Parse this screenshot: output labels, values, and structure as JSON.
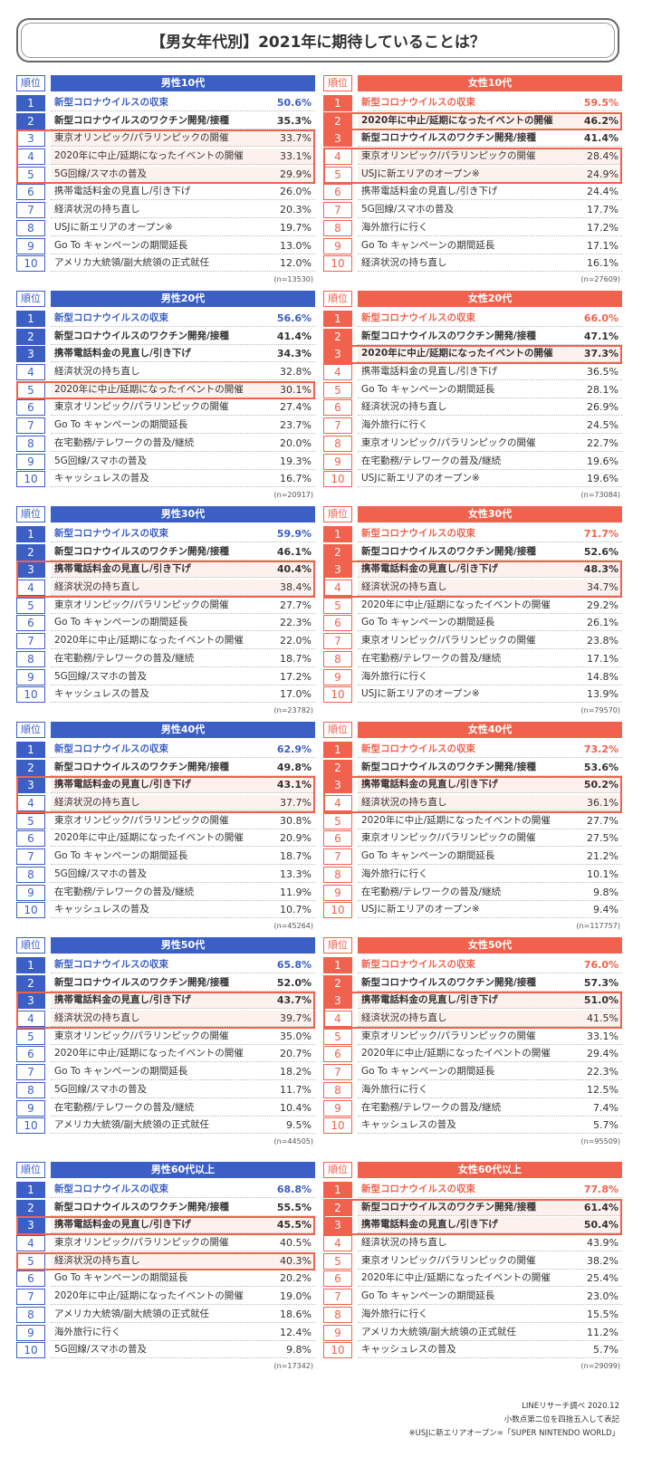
{
  "title": "【男女年代別】2021年に期待していることは？",
  "rank_header": "順位",
  "groups": [
    {
      "name": "男性10代",
      "side": "blue",
      "n": "(n=13530)",
      "bold": 2,
      "boxes": [
        [
          3,
          5
        ]
      ],
      "items": [
        [
          "新型コロナウイルスの収束",
          "50.6%"
        ],
        [
          "新型コロナウイルスのワクチン開発/接種",
          "35.3%"
        ],
        [
          "東京オリンピック/パラリンピックの開催",
          "33.7%"
        ],
        [
          "2020年に中止/延期になったイベントの開催",
          "33.1%"
        ],
        [
          "5G回線/スマホの普及",
          "29.9%"
        ],
        [
          "携帯電話料金の見直し/引き下げ",
          "26.0%"
        ],
        [
          "経済状況の持ち直し",
          "20.3%"
        ],
        [
          "USJに新エリアのオープン※",
          "19.7%"
        ],
        [
          "Go To キャンペーンの期間延長",
          "13.0%"
        ],
        [
          "アメリカ大統領/副大統領の正式就任",
          "12.0%"
        ]
      ]
    },
    {
      "name": "女性10代",
      "side": "red",
      "n": "(n=27609)",
      "bold": 3,
      "boxes": [
        [
          2,
          2
        ],
        [
          4,
          5
        ]
      ],
      "items": [
        [
          "新型コロナウイルスの収束",
          "59.5%"
        ],
        [
          "2020年に中止/延期になったイベントの開催",
          "46.2%"
        ],
        [
          "新型コロナウイルスのワクチン開発/接種",
          "41.4%"
        ],
        [
          "東京オリンピック/パラリンピックの開催",
          "28.4%"
        ],
        [
          "USJに新エリアのオープン※",
          "24.9%"
        ],
        [
          "携帯電話料金の見直し/引き下げ",
          "24.4%"
        ],
        [
          "5G回線/スマホの普及",
          "17.7%"
        ],
        [
          "海外旅行に行く",
          "17.2%"
        ],
        [
          "Go To キャンペーンの期間延長",
          "17.1%"
        ],
        [
          "経済状況の持ち直し",
          "16.1%"
        ]
      ]
    },
    {
      "name": "男性20代",
      "side": "blue",
      "n": "(n=20917)",
      "bold": 3,
      "boxes": [
        [
          5,
          5
        ]
      ],
      "items": [
        [
          "新型コロナウイルスの収束",
          "56.6%"
        ],
        [
          "新型コロナウイルスのワクチン開発/接種",
          "41.4%"
        ],
        [
          "携帯電話料金の見直し/引き下げ",
          "34.3%"
        ],
        [
          "経済状況の持ち直し",
          "32.8%"
        ],
        [
          "2020年に中止/延期になったイベントの開催",
          "30.1%"
        ],
        [
          "東京オリンピック/パラリンピックの開催",
          "27.4%"
        ],
        [
          "Go To キャンペーンの期間延長",
          "23.7%"
        ],
        [
          "在宅勤務/テレワークの普及/継続",
          "20.0%"
        ],
        [
          "5G回線/スマホの普及",
          "19.3%"
        ],
        [
          "キャッシュレスの普及",
          "16.7%"
        ]
      ]
    },
    {
      "name": "女性20代",
      "side": "red",
      "n": "(n=73084)",
      "bold": 3,
      "boxes": [
        [
          3,
          3
        ]
      ],
      "items": [
        [
          "新型コロナウイルスの収束",
          "66.0%"
        ],
        [
          "新型コロナウイルスのワクチン開発/接種",
          "47.1%"
        ],
        [
          "2020年に中止/延期になったイベントの開催",
          "37.3%"
        ],
        [
          "携帯電話料金の見直し/引き下げ",
          "36.5%"
        ],
        [
          "Go To キャンペーンの期間延長",
          "28.1%"
        ],
        [
          "経済状況の持ち直し",
          "26.9%"
        ],
        [
          "海外旅行に行く",
          "24.5%"
        ],
        [
          "東京オリンピック/パラリンピックの開催",
          "22.7%"
        ],
        [
          "在宅勤務/テレワークの普及/継続",
          "19.6%"
        ],
        [
          "USJに新エリアのオープン※",
          "19.6%"
        ]
      ]
    },
    {
      "name": "男性30代",
      "side": "blue",
      "n": "(n=23782)",
      "bold": 3,
      "boxes": [
        [
          3,
          4
        ]
      ],
      "items": [
        [
          "新型コロナウイルスの収束",
          "59.9%"
        ],
        [
          "新型コロナウイルスのワクチン開発/接種",
          "46.1%"
        ],
        [
          "携帯電話料金の見直し/引き下げ",
          "40.4%"
        ],
        [
          "経済状況の持ち直し",
          "38.4%"
        ],
        [
          "東京オリンピック/パラリンピックの開催",
          "27.7%"
        ],
        [
          "Go To キャンペーンの期間延長",
          "22.3%"
        ],
        [
          "2020年に中止/延期になったイベントの開催",
          "22.0%"
        ],
        [
          "在宅勤務/テレワークの普及/継続",
          "18.7%"
        ],
        [
          "5G回線/スマホの普及",
          "17.2%"
        ],
        [
          "キャッシュレスの普及",
          "17.0%"
        ]
      ]
    },
    {
      "name": "女性30代",
      "side": "red",
      "n": "(n=79570)",
      "bold": 3,
      "boxes": [
        [
          3,
          4
        ]
      ],
      "items": [
        [
          "新型コロナウイルスの収束",
          "71.7%"
        ],
        [
          "新型コロナウイルスのワクチン開発/接種",
          "52.6%"
        ],
        [
          "携帯電話料金の見直し/引き下げ",
          "48.3%"
        ],
        [
          "経済状況の持ち直し",
          "34.7%"
        ],
        [
          "2020年に中止/延期になったイベントの開催",
          "29.2%"
        ],
        [
          "Go To キャンペーンの期間延長",
          "26.1%"
        ],
        [
          "東京オリンピック/パラリンピックの開催",
          "23.8%"
        ],
        [
          "在宅勤務/テレワークの普及/継続",
          "17.1%"
        ],
        [
          "海外旅行に行く",
          "14.8%"
        ],
        [
          "USJに新エリアのオープン※",
          "13.9%"
        ]
      ]
    },
    {
      "name": "男性40代",
      "side": "blue",
      "n": "(n=45264)",
      "bold": 3,
      "boxes": [
        [
          3,
          4
        ]
      ],
      "items": [
        [
          "新型コロナウイルスの収束",
          "62.9%"
        ],
        [
          "新型コロナウイルスのワクチン開発/接種",
          "49.8%"
        ],
        [
          "携帯電話料金の見直し/引き下げ",
          "43.1%"
        ],
        [
          "経済状況の持ち直し",
          "37.7%"
        ],
        [
          "東京オリンピック/パラリンピックの開催",
          "30.8%"
        ],
        [
          "2020年に中止/延期になったイベントの開催",
          "20.9%"
        ],
        [
          "Go To キャンペーンの期間延長",
          "18.7%"
        ],
        [
          "5G回線/スマホの普及",
          "13.3%"
        ],
        [
          "在宅勤務/テレワークの普及/継続",
          "11.9%"
        ],
        [
          "キャッシュレスの普及",
          "10.7%"
        ]
      ]
    },
    {
      "name": "女性40代",
      "side": "red",
      "n": "(n=117757)",
      "bold": 3,
      "boxes": [
        [
          3,
          4
        ]
      ],
      "items": [
        [
          "新型コロナウイルスの収束",
          "73.2%"
        ],
        [
          "新型コロナウイルスのワクチン開発/接種",
          "53.6%"
        ],
        [
          "携帯電話料金の見直し/引き下げ",
          "50.2%"
        ],
        [
          "経済状況の持ち直し",
          "36.1%"
        ],
        [
          "2020年に中止/延期になったイベントの開催",
          "27.7%"
        ],
        [
          "東京オリンピック/パラリンピックの開催",
          "27.5%"
        ],
        [
          "Go To キャンペーンの期間延長",
          "21.2%"
        ],
        [
          "海外旅行に行く",
          "10.1%"
        ],
        [
          "在宅勤務/テレワークの普及/継続",
          "9.8%"
        ],
        [
          "USJに新エリアのオープン※",
          "9.4%"
        ]
      ]
    },
    {
      "name": "男性50代",
      "side": "blue",
      "n": "(n=44505)",
      "bold": 3,
      "boxes": [
        [
          3,
          4
        ]
      ],
      "items": [
        [
          "新型コロナウイルスの収束",
          "65.8%"
        ],
        [
          "新型コロナウイルスのワクチン開発/接種",
          "52.0%"
        ],
        [
          "携帯電話料金の見直し/引き下げ",
          "43.7%"
        ],
        [
          "経済状況の持ち直し",
          "39.7%"
        ],
        [
          "東京オリンピック/パラリンピックの開催",
          "35.0%"
        ],
        [
          "2020年に中止/延期になったイベントの開催",
          "20.7%"
        ],
        [
          "Go To キャンペーンの期間延長",
          "18.2%"
        ],
        [
          "5G回線/スマホの普及",
          "11.7%"
        ],
        [
          "在宅勤務/テレワークの普及/継続",
          "10.4%"
        ],
        [
          "アメリカ大統領/副大統領の正式就任",
          "9.5%"
        ]
      ]
    },
    {
      "name": "女性50代",
      "side": "red",
      "n": "(n=95509)",
      "bold": 3,
      "boxes": [
        [
          3,
          4
        ]
      ],
      "items": [
        [
          "新型コロナウイルスの収束",
          "76.0%"
        ],
        [
          "新型コロナウイルスのワクチン開発/接種",
          "57.3%"
        ],
        [
          "携帯電話料金の見直し/引き下げ",
          "51.0%"
        ],
        [
          "経済状況の持ち直し",
          "41.5%"
        ],
        [
          "東京オリンピック/パラリンピックの開催",
          "33.1%"
        ],
        [
          "2020年に中止/延期になったイベントの開催",
          "29.4%"
        ],
        [
          "Go To キャンペーンの期間延長",
          "22.3%"
        ],
        [
          "海外旅行に行く",
          "12.5%"
        ],
        [
          "在宅勤務/テレワークの普及/継続",
          "7.4%"
        ],
        [
          "キャッシュレスの普及",
          "5.7%"
        ]
      ]
    },
    {
      "name": "男性60代以上",
      "side": "blue",
      "n": "(n=17342)",
      "bold": 3,
      "boxes": [
        [
          3,
          3
        ],
        [
          5,
          5
        ]
      ],
      "items": [
        [
          "新型コロナウイルスの収束",
          "68.8%"
        ],
        [
          "新型コロナウイルスのワクチン開発/接種",
          "55.5%"
        ],
        [
          "携帯電話料金の見直し/引き下げ",
          "45.5%"
        ],
        [
          "東京オリンピック/パラリンピックの開催",
          "40.5%"
        ],
        [
          "経済状況の持ち直し",
          "40.3%"
        ],
        [
          "Go To キャンペーンの期間延長",
          "20.2%"
        ],
        [
          "2020年に中止/延期になったイベントの開催",
          "19.0%"
        ],
        [
          "アメリカ大統領/副大統領の正式就任",
          "18.6%"
        ],
        [
          "海外旅行に行く",
          "12.4%"
        ],
        [
          "5G回線/スマホの普及",
          "9.8%"
        ]
      ]
    },
    {
      "name": "女性60代以上",
      "side": "red",
      "n": "(n=29099)",
      "bold": 3,
      "boxes": [
        [
          2,
          3
        ]
      ],
      "items": [
        [
          "新型コロナウイルスの収束",
          "77.8%"
        ],
        [
          "新型コロナウイルスのワクチン開発/接種",
          "61.4%"
        ],
        [
          "携帯電話料金の見直し/引き下げ",
          "50.4%"
        ],
        [
          "経済状況の持ち直し",
          "43.9%"
        ],
        [
          "東京オリンピック/パラリンピックの開催",
          "38.2%"
        ],
        [
          "2020年に中止/延期になったイベントの開催",
          "25.4%"
        ],
        [
          "Go To キャンペーンの期間延長",
          "23.0%"
        ],
        [
          "海外旅行に行く",
          "15.5%"
        ],
        [
          "アメリカ大統領/副大統領の正式就任",
          "11.2%"
        ],
        [
          "キャッシュレスの普及",
          "5.7%"
        ]
      ]
    }
  ],
  "footer": {
    "line1": "LINEリサーチ調べ 2020.12",
    "line2": "小数点第二位を四捨五入して表記",
    "line3": "※USJに新エリアオープン=「SUPER NINTENDO WORLD」"
  },
  "colors": {
    "male": "#3c5fc6",
    "female": "#f0624d",
    "highlight_bg": "#fdf1ee"
  }
}
